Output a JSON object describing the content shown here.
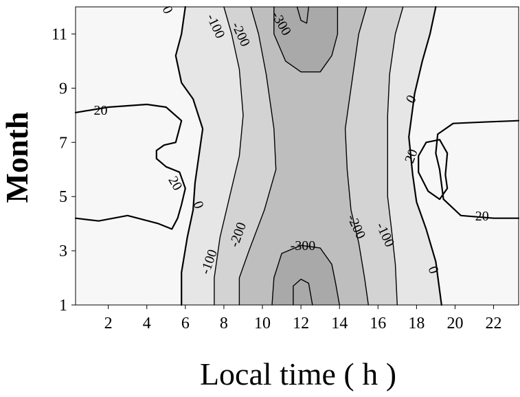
{
  "chart_data": {
    "type": "contour",
    "title": "",
    "xlabel": "Local time ( h )",
    "ylabel": "Month",
    "xlim": [
      0.3,
      23.3
    ],
    "ylim": [
      1,
      12
    ],
    "xticks": [
      "2",
      "4",
      "6",
      "8",
      "10",
      "12",
      "14",
      "16",
      "18",
      "20",
      "22"
    ],
    "yticks": [
      "1",
      "3",
      "5",
      "7",
      "9",
      "11"
    ],
    "colors": {
      "background": "#f7f7f7",
      "band_0": "#e6e6e6",
      "band_-100": "#d3d3d3",
      "band_-200": "#bebebe",
      "band_-300": "#a9a9a9",
      "line": "#000000"
    },
    "levels": [
      20,
      0,
      -100,
      -200,
      -300
    ],
    "contours": [
      {
        "level": 20,
        "label": "20",
        "points": [
          [
            0.3,
            8.1
          ],
          [
            2.0,
            8.3
          ],
          [
            4.0,
            8.4
          ],
          [
            5.0,
            8.3
          ],
          [
            5.8,
            7.8
          ],
          [
            5.5,
            7.0
          ],
          [
            4.9,
            6.9
          ],
          [
            4.5,
            6.7
          ],
          [
            4.5,
            6.4
          ],
          [
            5.0,
            6.1
          ],
          [
            5.7,
            5.9
          ],
          [
            6.0,
            5.3
          ],
          [
            5.8,
            4.7
          ],
          [
            5.6,
            4.2
          ],
          [
            5.3,
            3.8
          ],
          [
            4.6,
            4.0
          ],
          [
            3.0,
            4.3
          ],
          [
            1.5,
            4.1
          ],
          [
            0.3,
            4.2
          ]
        ]
      },
      {
        "level": 20,
        "label": "20",
        "points": [
          [
            23.3,
            7.8
          ],
          [
            21.5,
            7.75
          ],
          [
            19.9,
            7.7
          ],
          [
            19.1,
            7.3
          ],
          [
            19.0,
            6.6
          ],
          [
            19.2,
            6.0
          ],
          [
            19.4,
            4.9
          ],
          [
            20.3,
            4.3
          ],
          [
            22.0,
            4.2
          ],
          [
            23.3,
            4.2
          ]
        ]
      },
      {
        "level": 20,
        "label": "20",
        "points": [
          [
            18.1,
            6.5
          ],
          [
            18.5,
            7.0
          ],
          [
            19.2,
            7.1
          ],
          [
            19.6,
            6.6
          ],
          [
            19.5,
            5.8
          ],
          [
            19.6,
            5.3
          ],
          [
            19.2,
            4.9
          ],
          [
            18.6,
            5.2
          ],
          [
            18.1,
            5.9
          ],
          [
            18.1,
            6.5
          ]
        ]
      },
      {
        "level": 0,
        "label": "0",
        "points": [
          [
            6.0,
            12.0
          ],
          [
            5.8,
            11.0
          ],
          [
            5.5,
            10.2
          ],
          [
            5.8,
            9.2
          ],
          [
            6.4,
            8.6
          ],
          [
            6.9,
            7.5
          ],
          [
            6.7,
            6.5
          ],
          [
            6.5,
            5.5
          ],
          [
            6.4,
            4.5
          ],
          [
            6.1,
            3.5
          ],
          [
            5.8,
            2.2
          ],
          [
            5.8,
            1.0
          ]
        ]
      },
      {
        "level": 0,
        "label": "0",
        "points": [
          [
            19.0,
            12.0
          ],
          [
            18.7,
            11.0
          ],
          [
            18.3,
            10.0
          ],
          [
            17.9,
            8.8
          ],
          [
            17.6,
            7.2
          ],
          [
            17.8,
            5.8
          ],
          [
            18.0,
            4.8
          ],
          [
            18.5,
            3.8
          ],
          [
            19.0,
            2.6
          ],
          [
            19.3,
            1.0
          ]
        ]
      },
      {
        "level": -100,
        "label": "-100",
        "points": [
          [
            8.0,
            12.0
          ],
          [
            8.4,
            11.0
          ],
          [
            8.8,
            9.7
          ],
          [
            9.0,
            8.0
          ],
          [
            8.8,
            6.5
          ],
          [
            8.3,
            5.0
          ],
          [
            7.8,
            3.5
          ],
          [
            7.5,
            2.0
          ],
          [
            7.5,
            1.0
          ]
        ]
      },
      {
        "level": -100,
        "label": "-100",
        "points": [
          [
            17.3,
            12.0
          ],
          [
            16.9,
            11.0
          ],
          [
            16.6,
            9.5
          ],
          [
            16.5,
            8.0
          ],
          [
            16.5,
            6.5
          ],
          [
            16.5,
            5.0
          ],
          [
            16.7,
            3.8
          ],
          [
            16.9,
            2.5
          ],
          [
            17.0,
            1.0
          ]
        ]
      },
      {
        "level": -200,
        "label": "-200",
        "points": [
          [
            9.4,
            12.0
          ],
          [
            9.8,
            11.0
          ],
          [
            10.2,
            9.5
          ],
          [
            10.6,
            7.5
          ],
          [
            10.7,
            6.0
          ],
          [
            10.1,
            4.5
          ],
          [
            9.3,
            3.0
          ],
          [
            8.8,
            2.0
          ],
          [
            8.8,
            1.0
          ]
        ]
      },
      {
        "level": -200,
        "label": "-200",
        "points": [
          [
            15.4,
            12.0
          ],
          [
            15.0,
            11.0
          ],
          [
            14.7,
            9.5
          ],
          [
            14.3,
            7.5
          ],
          [
            14.4,
            6.0
          ],
          [
            14.6,
            4.5
          ],
          [
            15.0,
            3.3
          ],
          [
            15.3,
            2.0
          ],
          [
            15.5,
            1.0
          ]
        ]
      },
      {
        "level": -300,
        "label": "-300",
        "points": [
          [
            10.6,
            12.0
          ],
          [
            10.6,
            11.0
          ],
          [
            11.2,
            10.0
          ],
          [
            12.0,
            9.6
          ],
          [
            13.0,
            9.6
          ],
          [
            13.6,
            10.2
          ],
          [
            13.9,
            11.0
          ],
          [
            13.9,
            12.0
          ]
        ]
      },
      {
        "level": -300,
        "label": "-300",
        "points": [
          [
            10.5,
            1.0
          ],
          [
            10.6,
            2.0
          ],
          [
            11.0,
            2.9
          ],
          [
            12.0,
            3.2
          ],
          [
            13.0,
            3.1
          ],
          [
            13.6,
            2.5
          ],
          [
            13.8,
            1.8
          ],
          [
            14.0,
            1.0
          ]
        ]
      },
      {
        "level": -300,
        "label": "",
        "points": [
          [
            11.8,
            12.0
          ],
          [
            12.0,
            11.5
          ],
          [
            12.3,
            11.4
          ],
          [
            12.4,
            12.0
          ]
        ]
      },
      {
        "level": -300,
        "label": "",
        "points": [
          [
            11.6,
            1.0
          ],
          [
            11.6,
            1.7
          ],
          [
            12.0,
            1.95
          ],
          [
            12.4,
            1.8
          ],
          [
            12.6,
            1.0
          ]
        ]
      }
    ],
    "bands": [
      {
        "fill": "band_0",
        "left": [
          [
            6.0,
            12.0
          ],
          [
            5.8,
            11.0
          ],
          [
            5.5,
            10.2
          ],
          [
            5.8,
            9.2
          ],
          [
            6.4,
            8.6
          ],
          [
            6.9,
            7.5
          ],
          [
            6.7,
            6.5
          ],
          [
            6.5,
            5.5
          ],
          [
            6.4,
            4.5
          ],
          [
            6.1,
            3.5
          ],
          [
            5.8,
            2.2
          ],
          [
            5.8,
            1.0
          ]
        ],
        "right": [
          [
            19.0,
            12.0
          ],
          [
            18.7,
            11.0
          ],
          [
            18.3,
            10.0
          ],
          [
            17.9,
            8.8
          ],
          [
            17.6,
            7.2
          ],
          [
            17.8,
            5.8
          ],
          [
            18.0,
            4.8
          ],
          [
            18.5,
            3.8
          ],
          [
            19.0,
            2.6
          ],
          [
            19.3,
            1.0
          ]
        ]
      },
      {
        "fill": "band_-100",
        "left": [
          [
            8.0,
            12.0
          ],
          [
            8.4,
            11.0
          ],
          [
            8.8,
            9.7
          ],
          [
            9.0,
            8.0
          ],
          [
            8.8,
            6.5
          ],
          [
            8.3,
            5.0
          ],
          [
            7.8,
            3.5
          ],
          [
            7.5,
            2.0
          ],
          [
            7.5,
            1.0
          ]
        ],
        "right": [
          [
            17.3,
            12.0
          ],
          [
            16.9,
            11.0
          ],
          [
            16.6,
            9.5
          ],
          [
            16.5,
            8.0
          ],
          [
            16.5,
            6.5
          ],
          [
            16.5,
            5.0
          ],
          [
            16.7,
            3.8
          ],
          [
            16.9,
            2.5
          ],
          [
            17.0,
            1.0
          ]
        ]
      },
      {
        "fill": "band_-200",
        "left": [
          [
            9.4,
            12.0
          ],
          [
            9.8,
            11.0
          ],
          [
            10.2,
            9.5
          ],
          [
            10.6,
            7.5
          ],
          [
            10.7,
            6.0
          ],
          [
            10.1,
            4.5
          ],
          [
            9.3,
            3.0
          ],
          [
            8.8,
            2.0
          ],
          [
            8.8,
            1.0
          ]
        ],
        "right": [
          [
            15.4,
            12.0
          ],
          [
            15.0,
            11.0
          ],
          [
            14.7,
            9.5
          ],
          [
            14.3,
            7.5
          ],
          [
            14.4,
            6.0
          ],
          [
            14.6,
            4.5
          ],
          [
            15.0,
            3.3
          ],
          [
            15.3,
            2.0
          ],
          [
            15.5,
            1.0
          ]
        ]
      }
    ],
    "regions": [
      {
        "fill": "band_-300",
        "points": [
          [
            10.6,
            12.0
          ],
          [
            10.6,
            11.0
          ],
          [
            11.2,
            10.0
          ],
          [
            12.0,
            9.6
          ],
          [
            13.0,
            9.6
          ],
          [
            13.6,
            10.2
          ],
          [
            13.9,
            11.0
          ],
          [
            13.9,
            12.0
          ]
        ]
      },
      {
        "fill": "band_-300",
        "points": [
          [
            10.5,
            1.0
          ],
          [
            10.6,
            2.0
          ],
          [
            11.0,
            2.9
          ],
          [
            12.0,
            3.2
          ],
          [
            13.0,
            3.1
          ],
          [
            13.6,
            2.5
          ],
          [
            13.8,
            1.8
          ],
          [
            14.0,
            1.0
          ]
        ]
      }
    ],
    "labels": [
      {
        "text": "20",
        "x": 1.6,
        "y": 8.2,
        "angle": 0
      },
      {
        "text": "20",
        "x": 5.5,
        "y": 5.5,
        "angle": 60
      },
      {
        "text": "0",
        "x": 5.1,
        "y": 11.9,
        "angle": 65
      },
      {
        "text": "0",
        "x": 6.7,
        "y": 4.7,
        "angle": 70
      },
      {
        "text": "-100",
        "x": 7.6,
        "y": 11.3,
        "angle": 65
      },
      {
        "text": "-200",
        "x": 8.9,
        "y": 11.0,
        "angle": 65
      },
      {
        "text": "-300",
        "x": 11.0,
        "y": 11.4,
        "angle": 60
      },
      {
        "text": "-100",
        "x": 7.2,
        "y": 2.6,
        "angle": -70
      },
      {
        "text": "-200",
        "x": 8.7,
        "y": 3.6,
        "angle": -70
      },
      {
        "text": "-300",
        "x": 12.1,
        "y": 3.2,
        "angle": 0
      },
      {
        "text": "-200",
        "x": 14.9,
        "y": 3.9,
        "angle": 65
      },
      {
        "text": "-100",
        "x": 16.4,
        "y": 3.6,
        "angle": 65
      },
      {
        "text": "0",
        "x": 18.9,
        "y": 2.3,
        "angle": 70
      },
      {
        "text": "0",
        "x": 17.7,
        "y": 8.6,
        "angle": -60
      },
      {
        "text": "20",
        "x": 17.7,
        "y": 6.5,
        "angle": -70
      },
      {
        "text": "20",
        "x": 21.4,
        "y": 4.3,
        "angle": 0
      }
    ]
  }
}
